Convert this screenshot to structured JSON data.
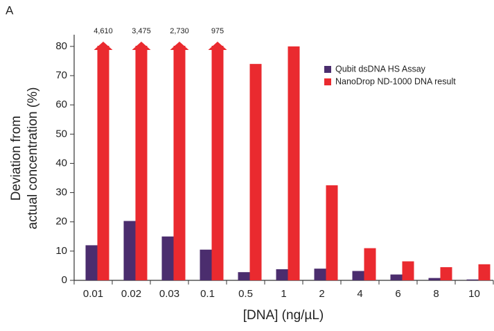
{
  "chart_data": {
    "type": "bar",
    "panel_label": "A",
    "ylabel": [
      "Deviation from",
      "actual concentration (%)"
    ],
    "xlabel": "[DNA] (ng/µL)",
    "categories": [
      "0.01",
      "0.02",
      "0.03",
      "0.1",
      "0.5",
      "1",
      "2",
      "4",
      "6",
      "8",
      "10"
    ],
    "series": [
      {
        "name": "Qubit dsDNA HS Assay",
        "color": "#4b2d6e",
        "values": [
          12,
          20.3,
          15,
          10.5,
          2.8,
          3.8,
          4,
          3.2,
          2,
          0.8,
          0.3
        ]
      },
      {
        "name": "NanoDrop ND-1000 DNA result",
        "color": "#ea2a2f",
        "values": [
          4610,
          3475,
          2730,
          975,
          74,
          80,
          32.5,
          11,
          6.5,
          4.5,
          5.5
        ],
        "value_labels": [
          "4,610",
          "3,475",
          "2,730",
          "975",
          null,
          null,
          null,
          null,
          null,
          null,
          null
        ]
      }
    ],
    "ylim": [
      0,
      84
    ],
    "yticks": [
      0,
      10,
      20,
      30,
      40,
      50,
      60,
      70,
      80
    ],
    "legend": "upper right"
  }
}
